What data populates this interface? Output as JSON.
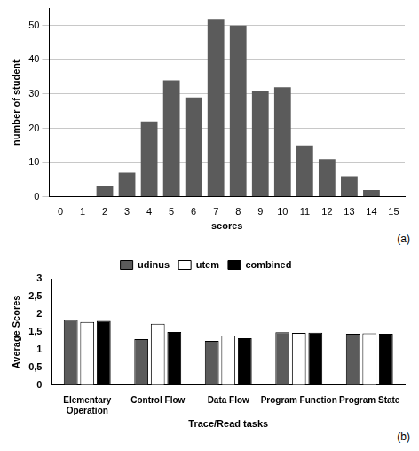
{
  "chart_data": [
    {
      "type": "bar",
      "annotation": "(a)",
      "x_label": "scores",
      "y_label": "number of student",
      "categories": [
        "0",
        "1",
        "2",
        "3",
        "4",
        "5",
        "6",
        "7",
        "8",
        "9",
        "10",
        "11",
        "12",
        "13",
        "14",
        "15"
      ],
      "values": [
        0,
        0,
        3,
        7,
        22,
        34,
        29,
        52,
        50,
        31,
        32,
        15,
        11,
        6,
        2,
        0
      ],
      "color": "#5b5b5b",
      "ylim": [
        0,
        55
      ],
      "yticks": [
        0,
        10,
        20,
        30,
        40,
        50
      ],
      "grid": true
    },
    {
      "type": "bar",
      "annotation": "(b)",
      "x_label": "Trace/Read tasks",
      "y_label": "Average Scores",
      "categories": [
        "Elementary Operation",
        "Control Flow",
        "Data Flow",
        "Program Function",
        "Program State"
      ],
      "series": [
        {
          "name": "udinus",
          "color": "#5b5b5b",
          "values": [
            1.84,
            1.3,
            1.25,
            1.49,
            1.45
          ]
        },
        {
          "name": "utem",
          "color": "#ffffff",
          "values": [
            1.78,
            1.73,
            1.4,
            1.47,
            1.46
          ]
        },
        {
          "name": "combined",
          "color": "#000000",
          "values": [
            1.81,
            1.5,
            1.32,
            1.48,
            1.45
          ]
        }
      ],
      "ylim": [
        0,
        3
      ],
      "yticks": [
        0,
        {
          "value": 0.5,
          "label": "0,5"
        },
        1,
        {
          "value": 1.5,
          "label": "1,5"
        },
        2,
        {
          "value": 2.5,
          "label": "2,5"
        },
        3
      ],
      "legend": "top",
      "grid": false
    }
  ]
}
